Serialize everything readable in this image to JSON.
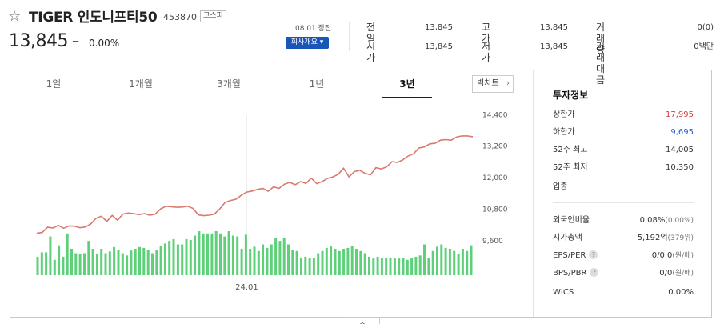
{
  "stock": {
    "name": "TIGER 인도니프티50",
    "code": "453870",
    "market": "코스피",
    "price": "13,845",
    "change_mark": "–",
    "change_rate": "0.00%",
    "date": "08.01 장전",
    "company_button": "회사개요 ▾"
  },
  "summary": {
    "prev_close_label": "전일",
    "prev_close": "13,845",
    "open_label": "시가",
    "open": "13,845",
    "high_label": "고가",
    "high": "13,845",
    "low_label": "저가",
    "low": "13,845",
    "volume_label": "거래량",
    "volume": "0(0)",
    "amount_label": "거래대금",
    "amount": "0백만"
  },
  "tabs": [
    {
      "label": "1일"
    },
    {
      "label": "1개월"
    },
    {
      "label": "3개월"
    },
    {
      "label": "1년"
    },
    {
      "label": "3년"
    }
  ],
  "active_tab": "3년",
  "big_chart_label": "빅차트",
  "info": {
    "title": "투자정보",
    "upper_label": "상한가",
    "upper": "17,995",
    "lower_label": "하한가",
    "lower": "9,695",
    "high52_label": "52주 최고",
    "high52": "14,005",
    "low52_label": "52주 최저",
    "low52": "10,350",
    "sector_label": "업종",
    "foreign_label": "외국인비율",
    "foreign": "0.08%",
    "foreign_sub": "(0.00%)",
    "mcap_label": "시가총액",
    "mcap": "5,192억",
    "mcap_sub": "(379위)",
    "eps_label": "EPS/PER",
    "eps": "0/0.0",
    "eps_sub": "(원/배)",
    "bps_label": "BPS/PBR",
    "bps": "0/0",
    "bps_sub": "(원/배)",
    "wics_label": "WICS",
    "wics": "0.00%",
    "help_glyph": "?"
  },
  "colors": {
    "line": "#d9796f",
    "volume": "#5fd07a",
    "up": "#d23b3b",
    "down": "#2f5fd2",
    "button": "#1a56b8"
  },
  "icons": {
    "favorite": "star-outline-icon",
    "chart_toggle": "chevron-up-icon"
  },
  "chart_data": {
    "type": "line",
    "y_ticks": [
      9600,
      10800,
      12000,
      13200,
      14400
    ],
    "y_tick_labels": [
      "9,600",
      "10,800",
      "12,000",
      "13,200",
      "14,400"
    ],
    "ylim": [
      8800,
      14900
    ],
    "x_tick_label": "24.01",
    "x_tick_index": 39,
    "series": [
      {
        "values": [
          9850,
          9880,
          10080,
          10050,
          10150,
          10040,
          10130,
          10120,
          10060,
          10090,
          10200,
          10420,
          10500,
          10300,
          10530,
          10350,
          10580,
          10620,
          10600,
          10560,
          10600,
          10540,
          10580,
          10780,
          10880,
          10860,
          10840,
          10850,
          10880,
          10800,
          10550,
          10520,
          10540,
          10580,
          10780,
          11030,
          11100,
          11150,
          11300,
          11420,
          11460,
          11520,
          11560,
          11450,
          11620,
          11560,
          11720,
          11790,
          11700,
          11820,
          11750,
          11950,
          11740,
          11820,
          11940,
          12000,
          12100,
          12330,
          12000,
          12200,
          12250,
          12130,
          12080,
          12350,
          12300,
          12380,
          12580,
          12550,
          12650,
          12800,
          12880,
          13100,
          13140,
          13260,
          13280,
          13400,
          13420,
          13400,
          13520,
          13560,
          13560,
          13530
        ]
      }
    ],
    "volume": [
      0.42,
      0.52,
      0.52,
      0.88,
      0.35,
      0.68,
      0.42,
      0.95,
      0.6,
      0.5,
      0.48,
      0.5,
      0.78,
      0.6,
      0.48,
      0.6,
      0.5,
      0.54,
      0.64,
      0.58,
      0.5,
      0.45,
      0.56,
      0.6,
      0.64,
      0.62,
      0.58,
      0.5,
      0.58,
      0.66,
      0.72,
      0.78,
      0.82,
      0.7,
      0.7,
      0.82,
      0.8,
      0.9,
      1.0,
      0.95,
      0.95,
      0.95,
      1.0,
      0.95,
      0.88,
      1.0,
      0.9,
      0.88,
      0.6,
      0.92,
      0.6,
      0.65,
      0.55,
      0.7,
      0.62,
      0.7,
      0.85,
      0.78,
      0.85,
      0.7,
      0.58,
      0.55,
      0.4,
      0.42,
      0.4,
      0.4,
      0.5,
      0.55,
      0.62,
      0.66,
      0.6,
      0.55,
      0.6,
      0.62,
      0.66,
      0.6,
      0.55,
      0.5,
      0.42,
      0.38,
      0.42,
      0.4,
      0.4,
      0.4,
      0.38,
      0.38,
      0.4,
      0.35,
      0.4,
      0.42,
      0.45,
      0.7,
      0.4,
      0.55,
      0.65,
      0.7,
      0.62,
      0.6,
      0.55,
      0.48,
      0.6,
      0.55,
      0.68
    ]
  }
}
